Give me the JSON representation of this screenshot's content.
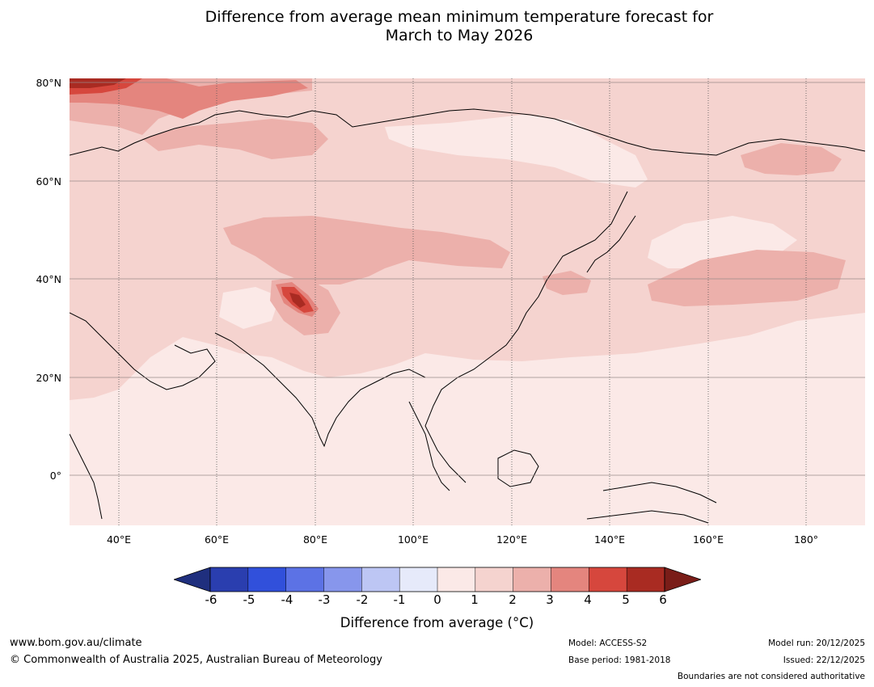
{
  "title_line1": "Difference from average mean minimum temperature forecast for",
  "title_line2": "March to May 2026",
  "map": {
    "lat_labels": [
      "80°N",
      "60°N",
      "40°N",
      "20°N",
      "0°"
    ],
    "lon_labels": [
      "40°E",
      "60°E",
      "80°E",
      "100°E",
      "120°E",
      "140°E",
      "160°E",
      "180°"
    ],
    "colors": {
      "background": "#fbe9e7",
      "band_0_1": "#fbe9e7",
      "band_1_2": "#f5d3cf",
      "band_2_3": "#ecb0ab",
      "band_3_4": "#e4857e",
      "band_4_5": "#d6473d",
      "band_5_6": "#a92b22",
      "band_6_plus": "#7a1d18",
      "coast": "#000000",
      "borders": "#808080"
    }
  },
  "colorbar": {
    "ticks": [
      "-6",
      "-5",
      "-4",
      "-3",
      "-2",
      "-1",
      "0",
      "1",
      "2",
      "3",
      "4",
      "5",
      "6"
    ],
    "colors": [
      "#1f2f7e",
      "#2a3eaf",
      "#3150db",
      "#5c72e5",
      "#8796ec",
      "#bdc6f4",
      "#e6eafa",
      "#fbe9e7",
      "#f5d3cf",
      "#ecb0ab",
      "#e4857e",
      "#d6473d",
      "#a92b22",
      "#7a1d18"
    ],
    "label": "Difference from average ($^\\circ$C)",
    "label_display": "Difference from average (°C)"
  },
  "footer": {
    "website": "www.bom.gov.au/climate",
    "copyright": "© Commonwealth of Australia 2025, Australian Bureau of Meteorology",
    "model": "Model: ACCESS-S2",
    "base_period": "Base period: 1981-2018",
    "model_run": "Model run: 20/12/2025",
    "issued": "Issued: 22/12/2025",
    "disclaimer": "Boundaries are not considered authoritative"
  }
}
